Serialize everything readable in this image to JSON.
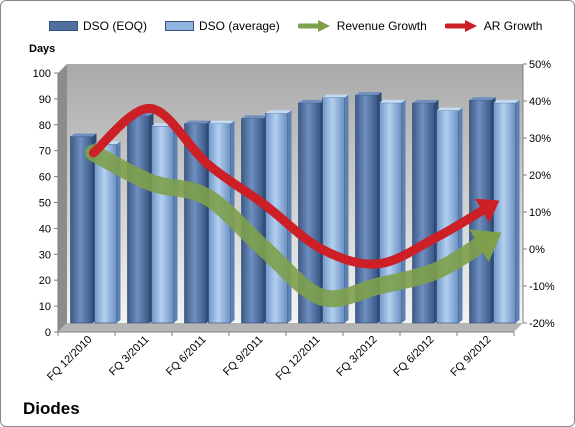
{
  "company_label": "Diodes",
  "chart_data": {
    "type": "bar",
    "categories": [
      "FQ 12/2010",
      "FQ 3/2011",
      "FQ 6/2011",
      "FQ 9/2011",
      "FQ 12/2011",
      "FQ 3/2012",
      "FQ 6/2012",
      "FQ 9/2012"
    ],
    "series": [
      {
        "name": "DSO (EOQ)",
        "axis": "left",
        "type": "bar",
        "color": "#4f6fa0",
        "values": [
          72,
          80,
          77,
          79,
          85,
          88,
          85,
          86
        ]
      },
      {
        "name": "DSO (average)",
        "axis": "left",
        "type": "bar",
        "color": "#8fb4e0",
        "values": [
          69,
          76,
          77,
          81,
          87,
          85,
          82,
          85
        ]
      },
      {
        "name": "Revenue Growth",
        "axis": "right",
        "type": "line-arrow",
        "color": "#7ea04b",
        "values": [
          26,
          18,
          14,
          0,
          -13,
          -10,
          -6,
          3
        ]
      },
      {
        "name": "AR Growth",
        "axis": "right",
        "type": "line-arrow",
        "color": "#cc1f26",
        "values": [
          26,
          38,
          23,
          12,
          0,
          -4,
          3,
          12
        ]
      }
    ],
    "ylabel": "Days",
    "ylim": [
      0,
      100
    ],
    "yticks": [
      "0",
      "10",
      "20",
      "30",
      "40",
      "50",
      "60",
      "70",
      "80",
      "90",
      "100"
    ],
    "y2lim": [
      -20,
      50
    ],
    "y2ticks": [
      "-20%",
      "-10%",
      "0%",
      "10%",
      "20%",
      "30%",
      "40%",
      "50%"
    ],
    "legend_position": "top",
    "grid": false
  }
}
